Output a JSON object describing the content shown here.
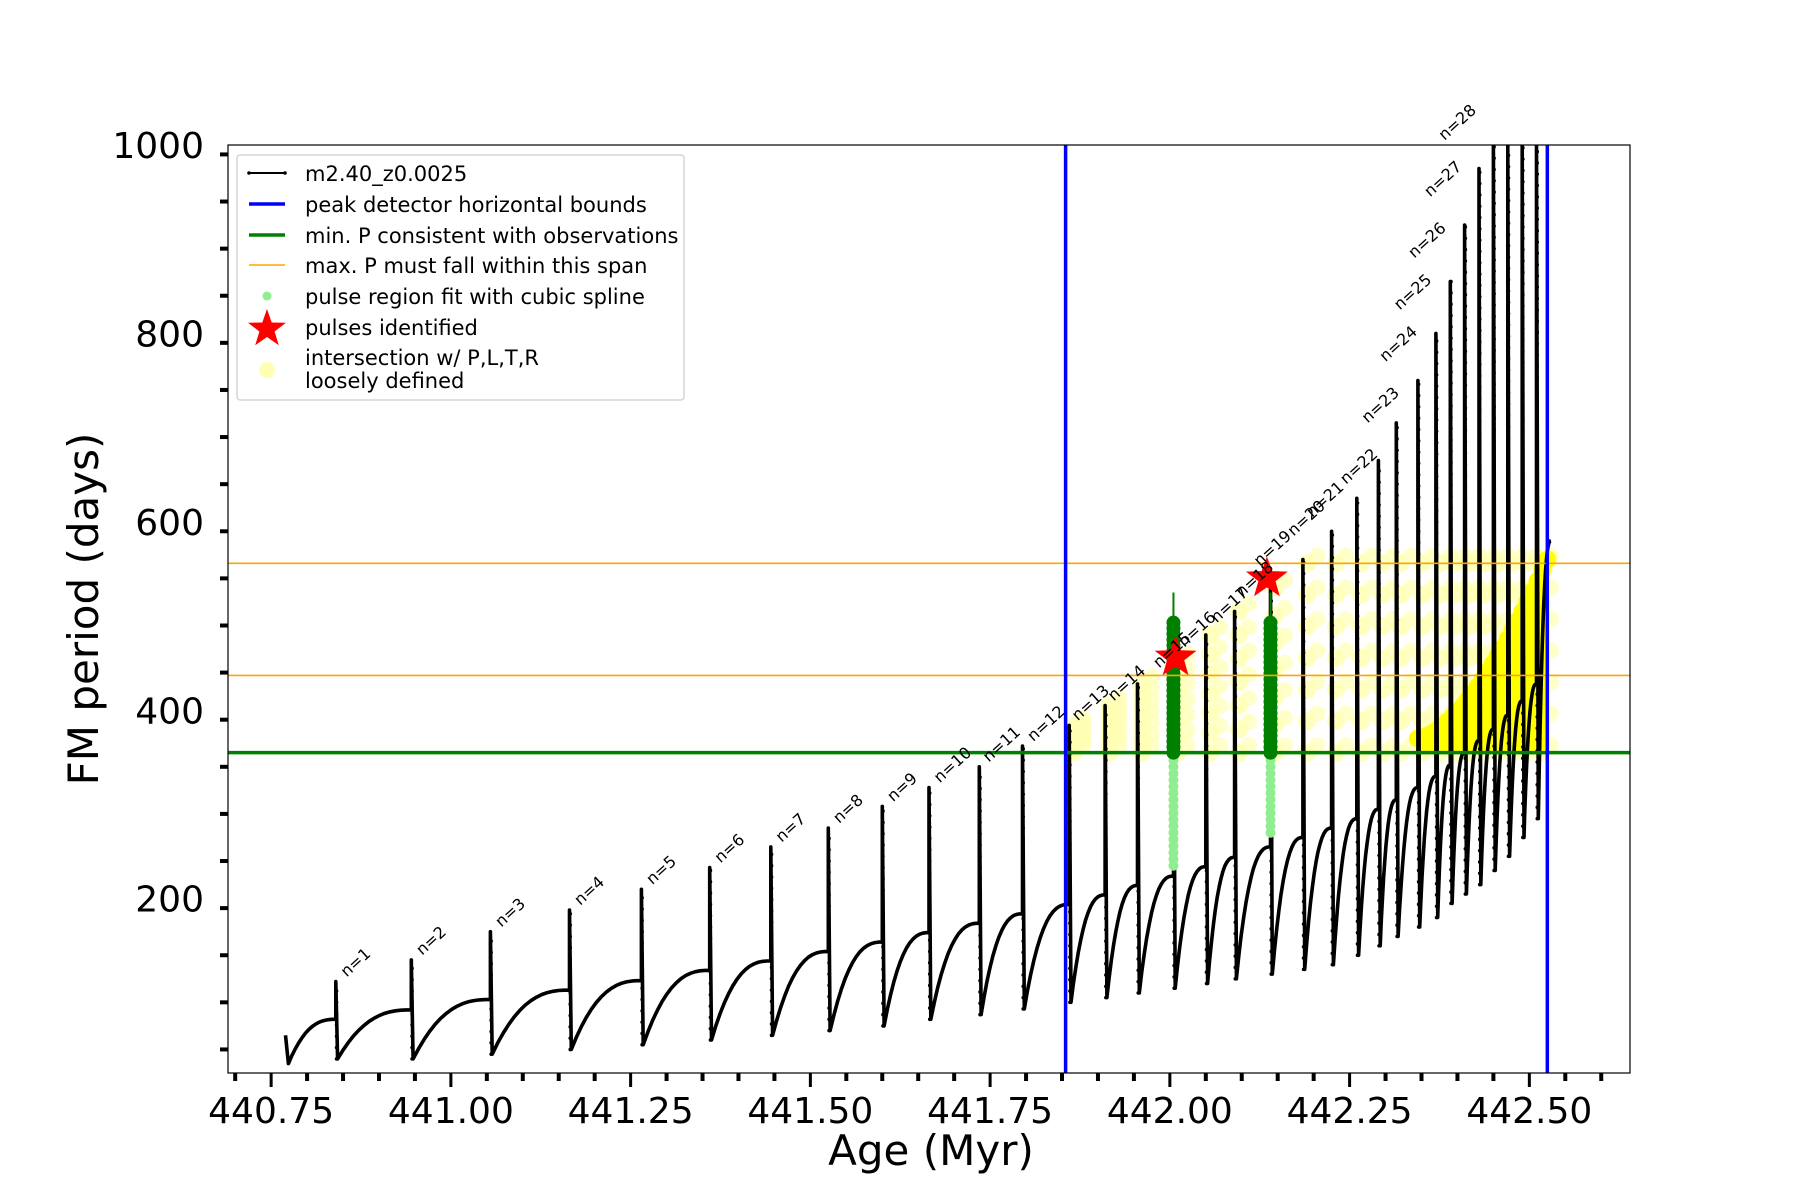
{
  "chart_data": {
    "type": "line",
    "title": "",
    "xlabel": "Age (Myr)",
    "ylabel": "FM period (days)",
    "xlim": [
      440.69,
      442.64
    ],
    "ylim": [
      15,
      1000
    ],
    "x_ticks": [
      440.75,
      441.0,
      441.25,
      441.5,
      441.75,
      442.0,
      442.25,
      442.5
    ],
    "x_tick_labels": [
      "440.75",
      "441.00",
      "441.25",
      "441.50",
      "441.75",
      "442.00",
      "442.25",
      "442.50"
    ],
    "y_ticks": [
      200,
      400,
      600,
      800,
      1000
    ],
    "y_tick_labels": [
      "200",
      "400",
      "600",
      "800",
      "1000"
    ],
    "grid": false,
    "legend_position": "top-left",
    "colors": {
      "model_track": "#000000",
      "peak_bounds": "#0000ff",
      "min_period": "#008000",
      "max_period_span": "#ffa500",
      "spline_fit": "#90ee90",
      "pulses_identified": "#ff0000",
      "intersection": "#ffff00",
      "intersection_loose": "#ffffb3"
    },
    "legend": [
      {
        "label": "m2.40_z0.0025",
        "kind": "line-marker",
        "color": "#000000"
      },
      {
        "label": "peak detector horizontal bounds",
        "kind": "line",
        "color": "#0000ff"
      },
      {
        "label": "min. P consistent with observations",
        "kind": "line",
        "color": "#008000"
      },
      {
        "label": "max. P must fall within this span",
        "kind": "thin-line",
        "color": "#ffa500"
      },
      {
        "label": "pulse region fit with cubic spline",
        "kind": "dot",
        "color": "#90ee90"
      },
      {
        "label": "pulses identified",
        "kind": "star",
        "color": "#ff0000"
      },
      {
        "label": "intersection w/ P,L,T,R",
        "label2": "loosely defined",
        "kind": "big-dot",
        "color": "#ffffb3"
      }
    ],
    "vertical_lines": [
      441.855,
      442.525
    ],
    "min_period_line": 355,
    "max_period_lines": [
      437,
      556
    ],
    "track_start": {
      "age": 440.77,
      "low": 25,
      "high": 55
    },
    "pulses": [
      {
        "n": 1,
        "label": "n=1",
        "age": 440.84,
        "min": 30,
        "max": 112,
        "pre": 72
      },
      {
        "n": 2,
        "label": "n=2",
        "age": 440.945,
        "min": 30,
        "max": 135,
        "pre": 82
      },
      {
        "n": 3,
        "label": "n=3",
        "age": 441.055,
        "min": 35,
        "max": 165,
        "pre": 93
      },
      {
        "n": 4,
        "label": "n=4",
        "age": 441.165,
        "min": 40,
        "max": 188,
        "pre": 103
      },
      {
        "n": 5,
        "label": "n=5",
        "age": 441.265,
        "min": 45,
        "max": 210,
        "pre": 113
      },
      {
        "n": 6,
        "label": "n=6",
        "age": 441.36,
        "min": 50,
        "max": 233,
        "pre": 124
      },
      {
        "n": 7,
        "label": "n=7",
        "age": 441.445,
        "min": 55,
        "max": 255,
        "pre": 134
      },
      {
        "n": 8,
        "label": "n=8",
        "age": 441.525,
        "min": 60,
        "max": 275,
        "pre": 144
      },
      {
        "n": 9,
        "label": "n=9",
        "age": 441.6,
        "min": 65,
        "max": 298,
        "pre": 154
      },
      {
        "n": 10,
        "label": "n=10",
        "age": 441.665,
        "min": 72,
        "max": 318,
        "pre": 164
      },
      {
        "n": 11,
        "label": "n=11",
        "age": 441.735,
        "min": 77,
        "max": 340,
        "pre": 174
      },
      {
        "n": 12,
        "label": "n=12",
        "age": 441.795,
        "min": 83,
        "max": 362,
        "pre": 184
      },
      {
        "n": 13,
        "label": "n=13",
        "age": 441.86,
        "min": 90,
        "max": 384,
        "pre": 194
      },
      {
        "n": 14,
        "label": "n=14",
        "age": 441.91,
        "min": 95,
        "max": 405,
        "pre": 204
      },
      {
        "n": 15,
        "label": "n=15",
        "age": 441.955,
        "min": 100,
        "max": 428,
        "pre": 214
      },
      {
        "n": 16,
        "label": "n=16",
        "age": 442.005,
        "min": 105,
        "max": 452,
        "pre": 224
      },
      {
        "n": 17,
        "label": "n=17",
        "age": 442.05,
        "min": 110,
        "max": 480,
        "pre": 234
      },
      {
        "n": 18,
        "label": "n=18",
        "age": 442.09,
        "min": 115,
        "max": 505,
        "pre": 244
      },
      {
        "n": 19,
        "label": "n=19",
        "age": 442.14,
        "min": 120,
        "max": 530,
        "pre": 255
      },
      {
        "n": 20,
        "label": "n=20",
        "age": 442.185,
        "min": 125,
        "max": 560,
        "pre": 265
      },
      {
        "n": 21,
        "label": "n=21",
        "age": 442.225,
        "min": 130,
        "max": 590,
        "pre": 275
      },
      {
        "n": 22,
        "label": "n=22",
        "age": 442.26,
        "min": 140,
        "max": 625,
        "pre": 285
      },
      {
        "n": 23,
        "label": "n=23",
        "age": 442.29,
        "min": 150,
        "max": 665,
        "pre": 295
      },
      {
        "n": 24,
        "label": "n=24",
        "age": 442.315,
        "min": 160,
        "max": 705,
        "pre": 305
      },
      {
        "n": 25,
        "label": "n=25",
        "age": 442.345,
        "min": 170,
        "max": 750,
        "pre": 318
      },
      {
        "n": 26,
        "label": "n=26",
        "age": 442.37,
        "min": 180,
        "max": 800,
        "pre": 330
      },
      {
        "n": 27,
        "label": "n=27",
        "age": 442.39,
        "min": 195,
        "max": 855,
        "pre": 342
      },
      {
        "n": 28,
        "label": "n=28",
        "age": 442.41,
        "min": 205,
        "max": 915,
        "pre": 355
      },
      {
        "n": 29,
        "label": "",
        "age": 442.43,
        "min": 215,
        "max": 975,
        "pre": 368
      },
      {
        "n": 30,
        "label": "",
        "age": 442.45,
        "min": 230,
        "max": 1000,
        "pre": 380
      },
      {
        "n": 31,
        "label": "",
        "age": 442.47,
        "min": 245,
        "max": 1000,
        "pre": 395
      },
      {
        "n": 32,
        "label": "",
        "age": 442.49,
        "min": 265,
        "max": 1000,
        "pre": 410
      },
      {
        "n": 33,
        "label": "",
        "age": 442.51,
        "min": 285,
        "max": 1000,
        "pre": 428
      }
    ],
    "final_segment": {
      "age_end": 442.53,
      "value_end": 580
    },
    "pulse_label_positions": [
      {
        "label": "n=1",
        "age": 440.855,
        "period": 112
      },
      {
        "label": "n=2",
        "age": 440.96,
        "period": 135
      },
      {
        "label": "n=3",
        "age": 441.07,
        "period": 165
      },
      {
        "label": "n=4",
        "age": 441.18,
        "period": 188
      },
      {
        "label": "n=5",
        "age": 441.28,
        "period": 210
      },
      {
        "label": "n=6",
        "age": 441.375,
        "period": 233
      },
      {
        "label": "n=7",
        "age": 441.46,
        "period": 255
      },
      {
        "label": "n=8",
        "age": 441.54,
        "period": 275
      },
      {
        "label": "n=9",
        "age": 441.615,
        "period": 298
      },
      {
        "label": "n=10",
        "age": 441.68,
        "period": 318
      },
      {
        "label": "n=11",
        "age": 441.748,
        "period": 340
      },
      {
        "label": "n=12",
        "age": 441.81,
        "period": 362
      },
      {
        "label": "n=13",
        "age": 441.872,
        "period": 384
      },
      {
        "label": "n=14",
        "age": 441.922,
        "period": 405
      },
      {
        "label": "n=15",
        "age": 441.985,
        "period": 440
      },
      {
        "label": "n=16",
        "age": 442.02,
        "period": 462
      },
      {
        "label": "n=17",
        "age": 442.065,
        "period": 488
      },
      {
        "label": "n=18",
        "age": 442.1,
        "period": 515
      },
      {
        "label": "n=19",
        "age": 442.125,
        "period": 548
      },
      {
        "label": "n=20",
        "age": 442.172,
        "period": 580
      },
      {
        "label": "n=21",
        "age": 442.198,
        "period": 600
      },
      {
        "label": "n=22",
        "age": 442.245,
        "period": 635
      },
      {
        "label": "n=23",
        "age": 442.275,
        "period": 700
      },
      {
        "label": "n=24",
        "age": 442.3,
        "period": 765
      },
      {
        "label": "n=25",
        "age": 442.32,
        "period": 820
      },
      {
        "label": "n=26",
        "age": 442.34,
        "period": 875
      },
      {
        "label": "n=27",
        "age": 442.362,
        "period": 940
      },
      {
        "label": "n=28",
        "age": 442.382,
        "period": 1000
      }
    ],
    "green_pulse_regions": [
      {
        "age": 442.005,
        "low": 355,
        "high": 495,
        "thin_top": 525
      },
      {
        "age": 442.14,
        "low": 355,
        "high": 495,
        "thin_top": 525
      }
    ],
    "spline_regions": [
      {
        "age": 442.005,
        "low": 235,
        "high": 355
      },
      {
        "age": 442.14,
        "low": 270,
        "high": 355
      }
    ],
    "pulses_identified_points": [
      {
        "age": 442.008,
        "period": 456
      },
      {
        "age": 442.135,
        "period": 540
      }
    ],
    "intersection_region": {
      "age_start": 442.345,
      "age_end": 442.525,
      "low": 355,
      "high_start": 370,
      "high_end": 560
    },
    "loose_intersection_region": {
      "age_start": 441.86,
      "age_end": 442.52,
      "low": 355,
      "high": 556
    }
  }
}
